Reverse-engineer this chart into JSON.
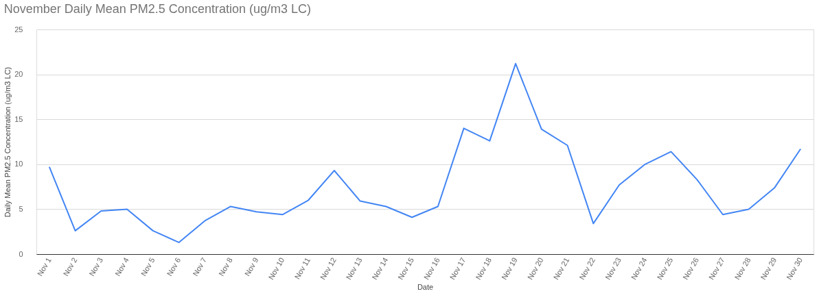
{
  "chart_data": {
    "type": "line",
    "title": "November Daily Mean PM2.5 Concentration (ug/m3 LC)",
    "xlabel": "Date",
    "ylabel": "Daily Mean PM2.5 Concentration (ug/m3 LC)",
    "categories": [
      "Nov 1",
      "Nov 2",
      "Nov 3",
      "Nov 4",
      "Nov 5",
      "Nov 6",
      "Nov 7",
      "Nov 8",
      "Nov 9",
      "Nov 10",
      "Nov 11",
      "Nov 12",
      "Nov 13",
      "Nov 14",
      "Nov 15",
      "Nov 16",
      "Nov 17",
      "Nov 18",
      "Nov 19",
      "Nov 20",
      "Nov 21",
      "Nov 22",
      "Nov 23",
      "Nov 24",
      "Nov 25",
      "Nov 26",
      "Nov 27",
      "Nov 28",
      "Nov 29",
      "Nov 30"
    ],
    "series": [
      {
        "color": "#4285f4",
        "values": [
          9.7,
          2.6,
          4.8,
          5.0,
          2.6,
          1.3,
          3.7,
          5.3,
          4.7,
          4.4,
          6.0,
          9.3,
          5.9,
          5.3,
          4.1,
          5.3,
          14.0,
          12.6,
          21.2,
          13.9,
          12.1,
          3.4,
          7.7,
          10.0,
          11.4,
          8.3,
          4.4,
          5.0,
          7.4,
          11.7
        ]
      }
    ],
    "ylim": [
      0,
      25
    ],
    "yticks": [
      0,
      5,
      10,
      15,
      20,
      25
    ],
    "grid": "y",
    "marker": "none",
    "line_style": "solid"
  }
}
